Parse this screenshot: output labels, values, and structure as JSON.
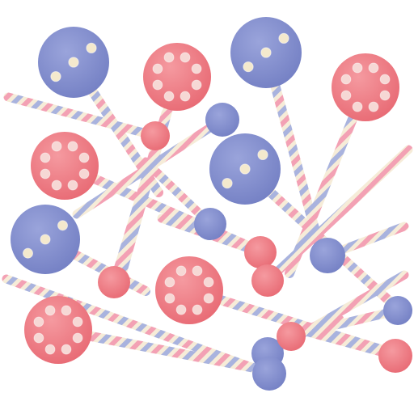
{
  "scene": {
    "subject": "lollipop-pieces",
    "background_color": "#ffffff",
    "colors": {
      "pink": "#f07d85",
      "pink_dot": "#f6d8d5",
      "blue": "#8893d0",
      "blue_dot": "#f4e9cd",
      "stick_base": "#f6ecd8",
      "stick_stripe_pink": "#f3a1b4",
      "stick_stripe_blue": "#a9b3de"
    },
    "pieces": [
      {
        "kind": "disc",
        "color": "blue",
        "dots": 3
      },
      {
        "kind": "disc",
        "color": "pink",
        "dots": 8
      },
      {
        "kind": "disc",
        "color": "blue",
        "dots": 3
      },
      {
        "kind": "disc",
        "color": "pink",
        "dots": 8
      },
      {
        "kind": "disc",
        "color": "pink",
        "dots": 8
      },
      {
        "kind": "disc",
        "color": "blue",
        "dots": 3
      },
      {
        "kind": "disc",
        "color": "blue",
        "dots": 3
      },
      {
        "kind": "disc",
        "color": "pink",
        "dots": 8
      },
      {
        "kind": "disc",
        "color": "pink",
        "dots": 8
      },
      {
        "kind": "ball",
        "color": "blue"
      },
      {
        "kind": "ball",
        "color": "pink"
      },
      {
        "kind": "ball",
        "color": "blue"
      },
      {
        "kind": "ball",
        "color": "pink"
      },
      {
        "kind": "ball",
        "color": "pink"
      },
      {
        "kind": "ball",
        "color": "pink"
      },
      {
        "kind": "ball",
        "color": "blue"
      },
      {
        "kind": "ball",
        "color": "blue"
      },
      {
        "kind": "ball",
        "color": "blue"
      },
      {
        "kind": "ball",
        "color": "pink"
      },
      {
        "kind": "ball",
        "color": "pink"
      },
      {
        "kind": "ball",
        "color": "blue"
      },
      {
        "kind": "ball",
        "color": "pink"
      }
    ]
  }
}
